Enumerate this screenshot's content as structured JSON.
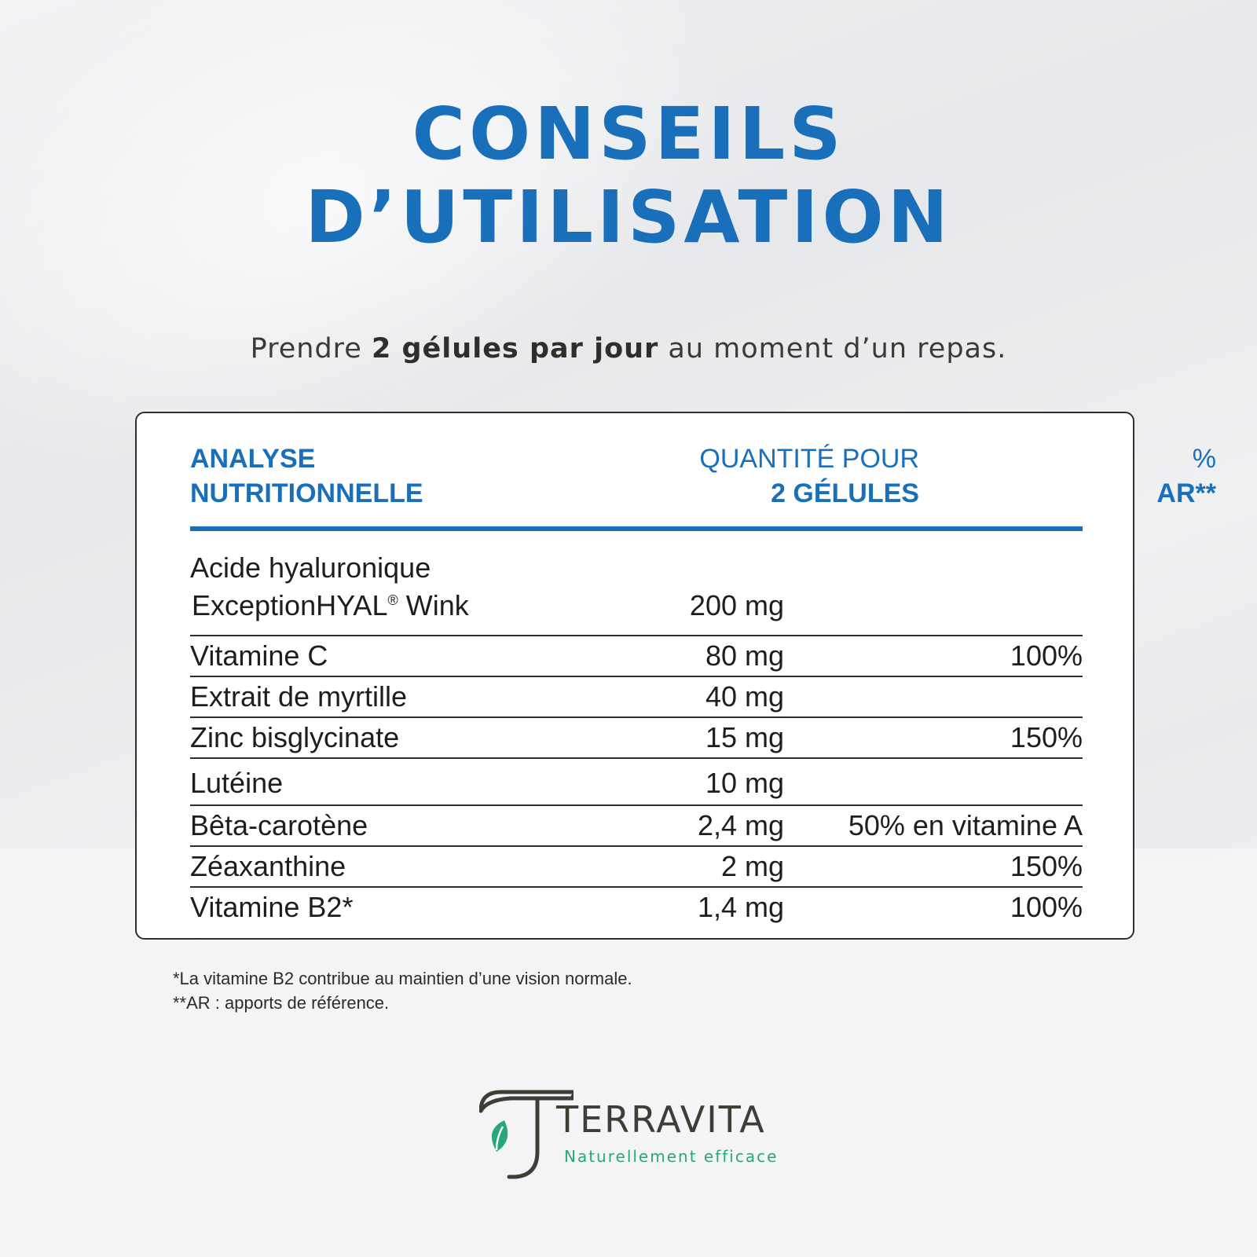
{
  "header": {
    "title_line1": "CONSEILS",
    "title_line2": "D’UTILISATION"
  },
  "instruction": {
    "before": "Prendre ",
    "bold": "2 gélules par jour",
    "after": " au moment d’un repas."
  },
  "table": {
    "col1": {
      "line1": "ANALYSE",
      "line2": "NUTRITIONNELLE"
    },
    "col2": {
      "line1": "QUANTITÉ POUR",
      "line2": "2 GÉLULES"
    },
    "col3": {
      "line1": "%",
      "line2": "AR**"
    },
    "first_row": {
      "line1": "Acide hyaluronique",
      "line2a": "ExceptionHYAL",
      "reg": "®",
      "line2b": " Wink",
      "quantity": "200 mg",
      "ar": ""
    },
    "rows": [
      {
        "name": "Vitamine C",
        "quantity": "80 mg",
        "ar": "100%"
      },
      {
        "name": "Extrait de myrtille",
        "quantity": "40 mg",
        "ar": ""
      },
      {
        "name": "Zinc bisglycinate",
        "quantity": "15 mg",
        "ar": "150%"
      },
      {
        "name": "Lutéine",
        "quantity": "10 mg",
        "ar": ""
      },
      {
        "name": "Bêta-carotène",
        "quantity": "2,4 mg",
        "ar": "50% en vitamine A"
      },
      {
        "name": "Zéaxanthine",
        "quantity": "2 mg",
        "ar": "150%"
      },
      {
        "name": "Vitamine B2*",
        "quantity": "1,4 mg",
        "ar": "100%"
      }
    ]
  },
  "footnotes": {
    "note1": "*La vitamine B2 contribue au maintien d’une vision normale.",
    "note2": "**AR : apports de référence."
  },
  "logo": {
    "name": "TERRAVITA",
    "tagline": "Naturellement efficace"
  },
  "colors": {
    "accent_blue": "#1a6fba",
    "logo_green": "#2aa77a",
    "logo_dark": "#3f3d35"
  }
}
